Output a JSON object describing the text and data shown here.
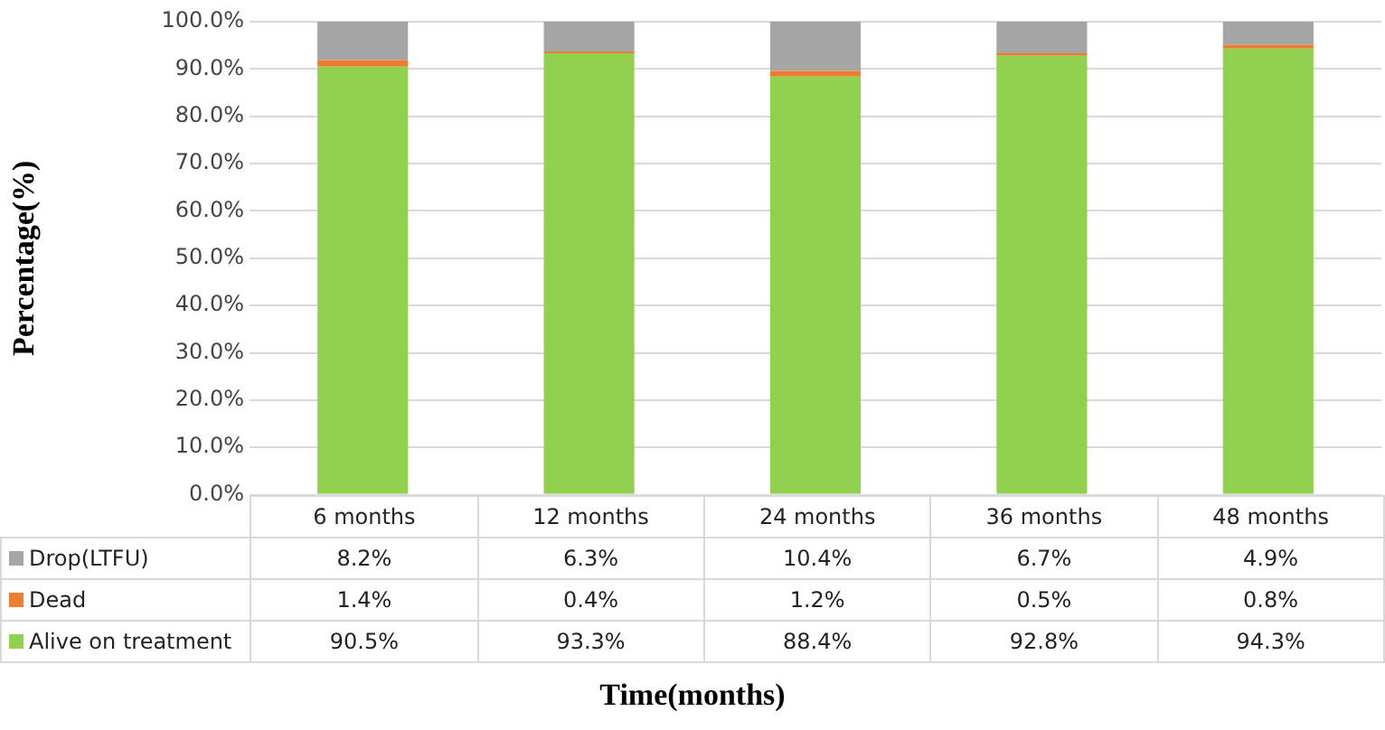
{
  "chart_data": {
    "type": "bar",
    "stacked": true,
    "ylabel": "Percentage(%)",
    "xlabel": "Time(months)",
    "categories": [
      "6 months",
      "12 months",
      "24 months",
      "36 months",
      "48 months"
    ],
    "series": [
      {
        "name": "Alive on treatment",
        "color": "#92d050",
        "values": [
          90.5,
          93.3,
          88.4,
          92.8,
          94.3
        ],
        "value_labels": [
          "90.5%",
          "93.3%",
          "88.4%",
          "92.8%",
          "94.3%"
        ]
      },
      {
        "name": "Dead",
        "color": "#ed7d31",
        "values": [
          1.4,
          0.4,
          1.2,
          0.5,
          0.8
        ],
        "value_labels": [
          "1.4%",
          "0.4%",
          "1.2%",
          "0.5%",
          "0.8%"
        ]
      },
      {
        "name": "Drop(LTFU)",
        "color": "#a5a5a5",
        "values": [
          8.2,
          6.3,
          10.4,
          6.7,
          4.9
        ],
        "value_labels": [
          "8.2%",
          "6.3%",
          "10.4%",
          "6.7%",
          "4.9%"
        ]
      }
    ],
    "ylim": [
      0,
      100
    ],
    "yticks": [
      {
        "value": 0,
        "label": "0.0%"
      },
      {
        "value": 10,
        "label": "10.0%"
      },
      {
        "value": 20,
        "label": "20.0%"
      },
      {
        "value": 30,
        "label": "30.0%"
      },
      {
        "value": 40,
        "label": "40.0%"
      },
      {
        "value": 50,
        "label": "50.0%"
      },
      {
        "value": 60,
        "label": "60.0%"
      },
      {
        "value": 70,
        "label": "70.0%"
      },
      {
        "value": 80,
        "label": "80.0%"
      },
      {
        "value": 90,
        "label": "90.0%"
      },
      {
        "value": 100,
        "label": "100.0%"
      }
    ],
    "grid": "y",
    "legend": "bottom"
  }
}
